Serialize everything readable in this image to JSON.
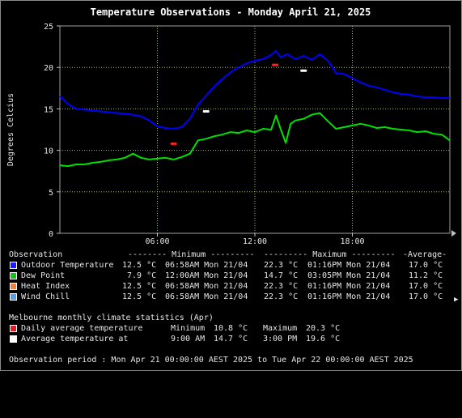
{
  "chart_data": {
    "type": "line",
    "title": "Temperature Observations - Monday April 21, 2025",
    "ylabel": "Degrees Celcius",
    "xlabel": "",
    "ylim": [
      0,
      25
    ],
    "yticks": [
      0,
      5,
      10,
      15,
      20,
      25
    ],
    "xlim_hours": [
      0,
      24
    ],
    "xticks": [
      {
        "hour": 6,
        "label": "06:00"
      },
      {
        "hour": 12,
        "label": "12:00"
      },
      {
        "hour": 18,
        "label": "18:00"
      }
    ],
    "grid": true,
    "series": [
      {
        "name": "Outdoor Temperature",
        "color": "#0000ff",
        "x": [
          0,
          0.5,
          1,
          1.5,
          2,
          2.5,
          3,
          3.5,
          4,
          4.5,
          5,
          5.5,
          6,
          6.5,
          7,
          7.5,
          8,
          8.5,
          9,
          9.5,
          10,
          10.5,
          11,
          11.5,
          12,
          12.5,
          13,
          13.3,
          13.6,
          14,
          14.5,
          15,
          15.5,
          16,
          16.5,
          17,
          17.5,
          18,
          18.5,
          19,
          19.5,
          20,
          20.5,
          21,
          21.5,
          22,
          22.5,
          23,
          23.5,
          24
        ],
        "y": [
          16.5,
          15.6,
          15.0,
          14.9,
          14.8,
          14.7,
          14.6,
          14.5,
          14.4,
          14.3,
          14.1,
          13.6,
          12.9,
          12.7,
          12.6,
          12.8,
          13.8,
          15.5,
          16.6,
          17.7,
          18.6,
          19.4,
          20.0,
          20.5,
          20.8,
          21.0,
          21.5,
          22.0,
          21.2,
          21.6,
          21.0,
          21.4,
          20.9,
          21.6,
          20.8,
          19.3,
          19.2,
          18.7,
          18.2,
          17.8,
          17.6,
          17.3,
          17.0,
          16.8,
          16.7,
          16.5,
          16.4,
          16.4,
          16.3,
          16.3
        ]
      },
      {
        "name": "Dew Point",
        "color": "#00e000",
        "x": [
          0,
          0.5,
          1,
          1.5,
          2,
          2.5,
          3,
          3.5,
          4,
          4.5,
          5,
          5.5,
          6,
          6.5,
          7,
          7.5,
          8,
          8.5,
          9,
          9.5,
          10,
          10.5,
          11,
          11.5,
          12,
          12.5,
          13,
          13.3,
          13.6,
          13.9,
          14.2,
          14.5,
          15,
          15.5,
          16,
          16.5,
          17,
          17.5,
          18,
          18.5,
          19,
          19.5,
          20,
          20.5,
          21,
          21.5,
          22,
          22.5,
          23,
          23.5,
          24
        ],
        "y": [
          8.2,
          8.1,
          8.3,
          8.3,
          8.5,
          8.6,
          8.8,
          8.9,
          9.1,
          9.6,
          9.1,
          8.9,
          9.0,
          9.1,
          8.9,
          9.2,
          9.6,
          11.2,
          11.4,
          11.7,
          11.9,
          12.2,
          12.1,
          12.4,
          12.2,
          12.6,
          12.5,
          14.2,
          12.5,
          10.9,
          13.2,
          13.6,
          13.8,
          14.3,
          14.5,
          13.5,
          12.6,
          12.8,
          13.0,
          13.2,
          13.0,
          12.7,
          12.8,
          12.6,
          12.5,
          12.4,
          12.2,
          12.3,
          12.0,
          11.9,
          11.2
        ]
      }
    ],
    "markers": [
      {
        "name": "Daily average temperature minimum",
        "hour": 7,
        "value": 10.8,
        "color": "#ff2020"
      },
      {
        "name": "Daily average temperature maximum",
        "hour": 13.25,
        "value": 20.3,
        "color": "#ff2020"
      },
      {
        "name": "Average temperature at 9:00 AM",
        "hour": 9,
        "value": 14.7,
        "color": "#ffffff"
      },
      {
        "name": "Average temperature at 3:00 PM",
        "hour": 15,
        "value": 19.6,
        "color": "#ffffff"
      }
    ]
  },
  "legend": {
    "headers": {
      "observation": "Observation",
      "minimum": "-------- Minimum ---------",
      "maximum": "--------- Maximum ---------",
      "average": "-Average-"
    },
    "rows": [
      {
        "label": "Outdoor Temperature",
        "color": "#1c1cff",
        "min_val": "12.5 °C",
        "min_time": "06:58AM Mon 21/04",
        "max_val": "22.3 °C",
        "max_time": "01:16PM Mon 21/04",
        "avg": "17.0 °C"
      },
      {
        "label": "Dew Point",
        "color": "#18c018",
        "min_val": "7.9 °C",
        "min_time": "12:00AM Mon 21/04",
        "max_val": "14.7 °C",
        "max_time": "03:05PM Mon 21/04",
        "avg": "11.2 °C"
      },
      {
        "label": "Heat Index",
        "color": "#f08040",
        "min_val": "12.5 °C",
        "min_time": "06:58AM Mon 21/04",
        "max_val": "22.3 °C",
        "max_time": "01:16PM Mon 21/04",
        "avg": "17.0 °C"
      },
      {
        "label": "Wind Chill",
        "color": "#50a0f0",
        "min_val": "12.5 °C",
        "min_time": "06:58AM Mon 21/04",
        "max_val": "22.3 °C",
        "max_time": "01:16PM Mon 21/04",
        "avg": "17.0 °C"
      }
    ]
  },
  "climate": {
    "heading": "Melbourne monthly climate statistics (Apr)",
    "rows": [
      {
        "label": "Daily average temperature",
        "color": "#e02020",
        "c1": "Minimum",
        "v1": "10.8 °C",
        "c2": "Maximum",
        "v2": "20.3 °C"
      },
      {
        "label": "Average temperature at",
        "color": "#ffffff",
        "c1": "9:00 AM",
        "v1": "14.7 °C",
        "c2": "3:00 PM",
        "v2": "19.6 °C"
      }
    ]
  },
  "period": "Observation period : Mon Apr 21 00:00:00 AEST 2025 to Tue Apr 22 00:00:00 AEST 2025"
}
